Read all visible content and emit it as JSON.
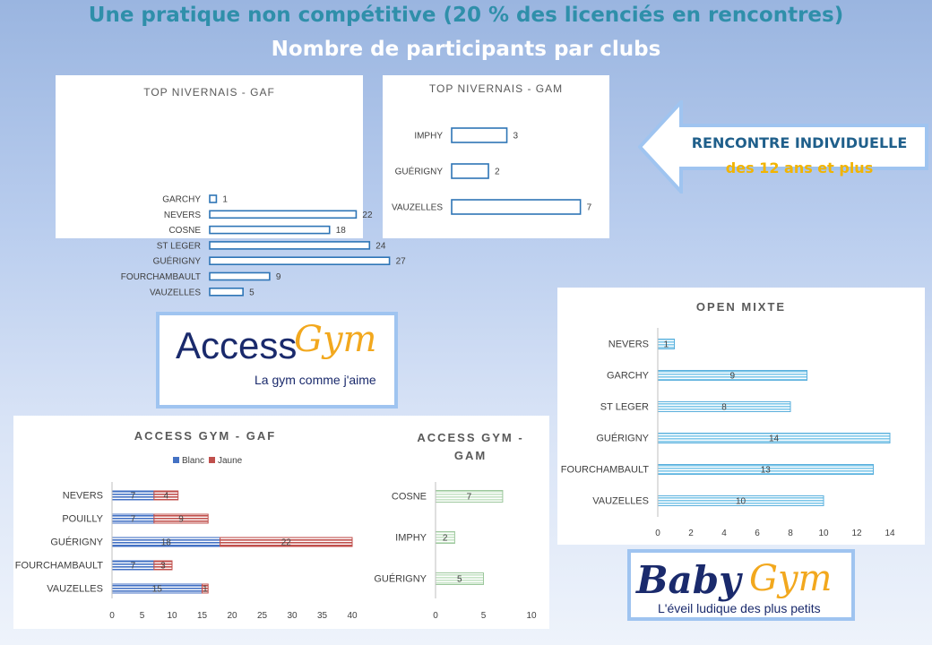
{
  "title": "Une pratique non compétitive (20 % des licenciés en rencontres)",
  "subtitle": "Nombre de participants par clubs",
  "arrow": {
    "line1": "RENCONTRE INDIVIDUELLE",
    "line2": "des 12 ans et plus"
  },
  "access_logo": {
    "word": "Access",
    "script": "Gym",
    "tagline": "La gym comme j'aime"
  },
  "baby_logo": {
    "word": "Baby",
    "script": "Gym",
    "tagline": "L'éveil ludique des plus petits"
  },
  "colors": {
    "outline": "#2e75b6",
    "blanc": "#4472c4",
    "jaune": "#c0504d",
    "light_blue": "#7fc8ea",
    "light_green": "#c7e4c7"
  },
  "chart_data": [
    {
      "type": "bar",
      "orientation": "horizontal",
      "title": "TOP NIVERNAIS - GAF",
      "categories": [
        "GARCHY",
        "NEVERS",
        "COSNE",
        "ST LEGER",
        "GUÉRIGNY",
        "FOURCHAMBAULT",
        "VAUZELLES"
      ],
      "values": [
        1,
        22,
        18,
        24,
        27,
        9,
        5
      ],
      "data_labels": true,
      "axis_visible": false,
      "grid": false
    },
    {
      "type": "bar",
      "orientation": "horizontal",
      "title": "TOP NIVERNAIS - GAM",
      "categories": [
        "IMPHY",
        "GUÉRIGNY",
        "VAUZELLES"
      ],
      "values": [
        3,
        2,
        7
      ],
      "data_labels": true,
      "axis_visible": false,
      "grid": false
    },
    {
      "type": "bar",
      "orientation": "horizontal",
      "stacked": true,
      "title": "ACCESS GYM - GAF",
      "categories": [
        "NEVERS",
        "POUILLY",
        "GUÉRIGNY",
        "FOURCHAMBAULT",
        "VAUZELLES"
      ],
      "series": [
        {
          "name": "Blanc",
          "values": [
            7,
            7,
            18,
            7,
            15
          ]
        },
        {
          "name": "Jaune",
          "values": [
            4,
            9,
            22,
            3,
            1
          ]
        }
      ],
      "x_ticks": [
        "0",
        "5",
        "10",
        "15",
        "20",
        "25",
        "30",
        "35",
        "40"
      ],
      "xlim": [
        0,
        40
      ],
      "legend": "top",
      "data_labels": true,
      "grid": false
    },
    {
      "type": "bar",
      "orientation": "horizontal",
      "title": "ACCESS GYM - GAM",
      "categories": [
        "COSNE",
        "IMPHY",
        "GUÉRIGNY"
      ],
      "values": [
        7,
        2,
        5
      ],
      "x_ticks": [
        "0",
        "5",
        "10"
      ],
      "xlim": [
        0,
        10
      ],
      "data_labels": true,
      "grid": false
    },
    {
      "type": "bar",
      "orientation": "horizontal",
      "title": "OPEN MIXTE",
      "categories": [
        "NEVERS",
        "GARCHY",
        "ST LEGER",
        "GUÉRIGNY",
        "FOURCHAMBAULT",
        "VAUZELLES"
      ],
      "values": [
        1,
        9,
        8,
        14,
        13,
        10
      ],
      "x_ticks": [
        "0",
        "2",
        "4",
        "6",
        "8",
        "10",
        "12",
        "14"
      ],
      "xlim": [
        0,
        14
      ],
      "data_labels": true,
      "grid": false
    }
  ]
}
